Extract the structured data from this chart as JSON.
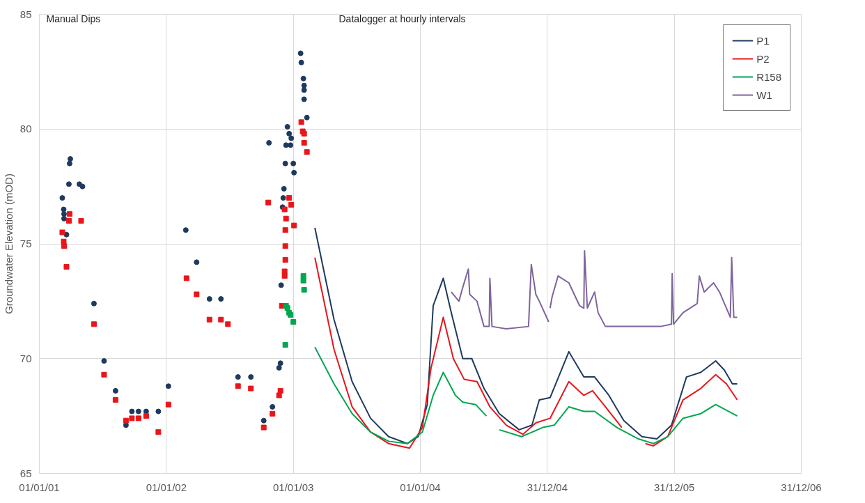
{
  "chart_data": {
    "type": "line",
    "ylabel": "Groundwater Elevation (mOD)",
    "annotations": [
      "Manual Dips",
      "Datalogger at hourly intervals"
    ],
    "xlim": [
      "2001-01-01",
      "2006-12-31"
    ],
    "xticks": [
      {
        "value": "2001-01-01",
        "label": "01/01/01"
      },
      {
        "value": "2002-01-01",
        "label": "01/01/02"
      },
      {
        "value": "2003-01-01",
        "label": "01/01/03"
      },
      {
        "value": "2004-01-01",
        "label": "01/01/04"
      },
      {
        "value": "2004-12-31",
        "label": "31/12/04"
      },
      {
        "value": "2005-12-31",
        "label": "31/12/05"
      },
      {
        "value": "2006-12-31",
        "label": "31/12/06"
      }
    ],
    "ylim": [
      65,
      85
    ],
    "yticks": [
      65,
      70,
      75,
      80,
      85
    ],
    "grid": true,
    "legend": "top right",
    "series": [
      {
        "name": "P1",
        "color": "#1f3a5f",
        "x": [
          "2003-03-04",
          "2003-04-28",
          "2003-06-19",
          "2003-08-11",
          "2003-10-02",
          "2003-11-25",
          "2003-12-26",
          "2004-01-21",
          "2004-02-07",
          "2004-03-07",
          "2004-03-30",
          "2004-05-02",
          "2004-05-28",
          "2004-07-02",
          "2004-08-15",
          "2004-10-11",
          "2004-11-17",
          "2004-12-08",
          "2005-01-08",
          "2005-03-03",
          "2005-04-15",
          "2005-05-16",
          "2005-06-26",
          "2005-08-08",
          "2005-09-29",
          "2005-11-11",
          "2005-12-23",
          "2006-02-04",
          "2006-03-17",
          "2006-04-29",
          "2006-05-24",
          "2006-06-16",
          "2006-06-30"
        ],
        "values": [
          75.7,
          71.7,
          69.0,
          67.4,
          66.6,
          66.3,
          66.6,
          68.0,
          72.3,
          73.5,
          72.0,
          70.0,
          70.0,
          68.7,
          67.6,
          66.9,
          67.1,
          68.2,
          68.3,
          70.3,
          69.2,
          69.2,
          68.4,
          67.3,
          66.6,
          66.5,
          67.1,
          69.2,
          69.4,
          69.9,
          69.5,
          68.9,
          68.9
        ]
      },
      {
        "name": "P2",
        "color": "#e8161b",
        "x": [
          "2003-03-04",
          "2003-04-28",
          "2003-06-19",
          "2003-08-11",
          "2003-10-02",
          "2003-12-01",
          "2004-01-07",
          "2004-02-01",
          "2004-03-07",
          "2004-04-05",
          "2004-05-06",
          "2004-06-12",
          "2004-07-19",
          "2004-09-04",
          "2004-10-22",
          "2004-11-28",
          "2005-01-08",
          "2005-03-03",
          "2005-04-15",
          "2005-05-10",
          "2005-06-16",
          "2005-08-02",
          "2005-08-20",
          "2005-10-09",
          "2005-11-01",
          "2005-12-12",
          "2006-01-25",
          "2006-03-17",
          "2006-04-29",
          "2006-05-30",
          "2006-06-30"
        ],
        "values": [
          74.4,
          70.4,
          67.9,
          66.8,
          66.3,
          66.1,
          67.0,
          69.6,
          71.8,
          70.0,
          69.1,
          69.0,
          67.9,
          67.1,
          66.7,
          67.2,
          67.4,
          69.0,
          68.4,
          68.6,
          67.9,
          67.0,
          null,
          66.3,
          66.2,
          66.6,
          68.2,
          68.7,
          69.3,
          68.9,
          68.2
        ]
      },
      {
        "name": "R158",
        "color": "#00a651",
        "x": [
          "2003-03-04",
          "2003-04-28",
          "2003-06-19",
          "2003-08-11",
          "2003-10-02",
          "2003-11-25",
          "2004-01-07",
          "2004-02-07",
          "2004-03-07",
          "2004-04-11",
          "2004-05-02",
          "2004-06-08",
          "2004-07-09",
          "2004-07-30",
          "2004-08-15",
          "2004-10-18",
          "2004-12-18",
          "2005-01-20",
          "2005-03-03",
          "2005-04-15",
          "2005-05-16",
          "2005-07-19",
          "2005-09-19",
          "2005-11-01",
          "2005-12-12",
          "2006-01-25",
          "2006-03-17",
          "2006-04-29",
          "2006-06-30"
        ],
        "values": [
          70.5,
          68.9,
          67.6,
          66.8,
          66.4,
          66.3,
          66.8,
          68.4,
          69.4,
          68.4,
          68.1,
          68.0,
          67.5,
          null,
          66.9,
          66.6,
          67.0,
          67.1,
          67.9,
          67.7,
          67.7,
          67.0,
          66.5,
          66.3,
          66.6,
          67.4,
          67.6,
          68.0,
          67.5
        ]
      },
      {
        "name": "W1",
        "color": "#7e649e",
        "x": [
          "2004-03-30",
          "2004-04-21",
          "2004-05-02",
          "2004-05-18",
          "2004-05-22",
          "2004-06-12",
          "2004-07-02",
          "2004-07-17",
          "2004-07-19",
          "2004-07-25",
          "2004-09-04",
          "2004-11-07",
          "2004-11-15",
          "2004-11-28",
          "2004-12-08",
          "2005-01-04",
          "2005-01-06",
          "2005-01-08",
          "2005-01-14",
          "2005-01-31",
          "2005-03-03",
          "2005-04-03",
          "2005-04-15",
          "2005-04-17",
          "2005-04-25",
          "2005-05-16",
          "2005-05-26",
          "2005-06-16",
          "2005-08-19",
          "2005-11-22",
          "2005-12-23",
          "2005-12-25",
          "2005-12-29",
          "2006-01-25",
          "2006-03-07",
          "2006-03-13",
          "2006-03-27",
          "2006-04-23",
          "2006-05-10",
          "2006-06-10",
          "2006-06-14",
          "2006-06-20",
          "2006-06-30"
        ],
        "values": [
          72.9,
          72.5,
          73.1,
          73.9,
          72.8,
          72.5,
          71.4,
          71.4,
          73.5,
          71.4,
          71.3,
          71.4,
          74.1,
          72.8,
          72.5,
          71.6,
          null,
          72.2,
          72.7,
          73.6,
          73.3,
          72.3,
          72.2,
          74.7,
          72.2,
          72.9,
          72.0,
          71.4,
          71.4,
          71.4,
          71.5,
          73.7,
          71.5,
          72.0,
          72.4,
          73.6,
          72.9,
          73.3,
          72.9,
          71.8,
          74.4,
          71.8,
          71.8
        ]
      },
      {
        "type": "scatter",
        "marker": "circle",
        "color": "#1f3a5f",
        "x": [
          "2001-03-08",
          "2001-03-12",
          "2001-03-13",
          "2001-03-13",
          "2001-03-20",
          "2001-03-27",
          "2001-03-29",
          "2001-03-31",
          "2001-04-26",
          "2001-05-05",
          "2001-06-07",
          "2001-07-06",
          "2001-08-08",
          "2001-09-07",
          "2001-09-24",
          "2001-10-13",
          "2001-11-04",
          "2001-12-09",
          "2002-01-07",
          "2002-02-26",
          "2002-03-29",
          "2002-05-05",
          "2002-06-07",
          "2002-07-26",
          "2002-09-01",
          "2002-10-08",
          "2002-10-23",
          "2002-11-02",
          "2002-11-21",
          "2002-11-25",
          "2002-11-27",
          "2002-12-01",
          "2002-12-03",
          "2002-12-05",
          "2002-12-09",
          "2002-12-11",
          "2002-12-15",
          "2002-12-20",
          "2002-12-24",
          "2002-12-26",
          "2003-01-01",
          "2003-01-03",
          "2003-01-22",
          "2003-01-24",
          "2003-01-30",
          "2003-02-01",
          "2003-02-01",
          "2003-02-01",
          "2003-02-09"
        ],
        "values": [
          77.0,
          76.5,
          76.3,
          76.1,
          75.4,
          77.6,
          78.5,
          78.7,
          77.6,
          77.5,
          72.4,
          69.9,
          68.6,
          67.1,
          67.7,
          67.7,
          67.7,
          67.7,
          68.8,
          75.6,
          74.2,
          72.6,
          72.6,
          69.2,
          69.2,
          67.3,
          79.4,
          67.9,
          69.6,
          69.8,
          73.2,
          76.6,
          77.0,
          77.4,
          78.5,
          79.3,
          80.1,
          79.8,
          79.3,
          79.6,
          78.5,
          78.1,
          83.3,
          82.9,
          82.2,
          81.9,
          81.7,
          81.3,
          80.5
        ]
      },
      {
        "type": "scatter",
        "marker": "square",
        "color": "#e8161b",
        "x": [
          "2001-03-08",
          "2001-03-12",
          "2001-03-13",
          "2001-03-20",
          "2001-03-27",
          "2001-03-29",
          "2001-05-01",
          "2001-06-07",
          "2001-07-06",
          "2001-08-08",
          "2001-09-07",
          "2001-09-24",
          "2001-10-13",
          "2001-11-04",
          "2001-12-09",
          "2002-01-07",
          "2002-02-28",
          "2002-03-29",
          "2002-05-05",
          "2002-06-07",
          "2002-06-27",
          "2002-07-26",
          "2002-09-01",
          "2002-10-08",
          "2002-10-21",
          "2002-11-02",
          "2002-11-21",
          "2002-11-25",
          "2002-11-29",
          "2002-12-07",
          "2002-12-07",
          "2002-12-07",
          "2002-12-09",
          "2002-12-09",
          "2002-12-09",
          "2002-12-11",
          "2002-12-20",
          "2002-12-26",
          "2003-01-03",
          "2003-01-24",
          "2003-01-28",
          "2003-02-01",
          "2003-02-01",
          "2003-02-09"
        ],
        "values": [
          75.5,
          75.1,
          74.9,
          74.0,
          76.0,
          76.3,
          76.0,
          71.5,
          69.3,
          68.2,
          67.3,
          67.4,
          67.4,
          67.5,
          66.8,
          68.0,
          73.5,
          72.8,
          71.7,
          71.7,
          71.5,
          68.8,
          68.7,
          67.0,
          76.8,
          67.6,
          68.4,
          68.6,
          72.3,
          73.6,
          73.8,
          76.5,
          74.3,
          74.9,
          75.6,
          76.1,
          77.0,
          76.7,
          75.8,
          80.3,
          79.9,
          79.8,
          79.4,
          79.0
        ]
      },
      {
        "type": "scatter",
        "marker": "square",
        "color": "#00a651",
        "x": [
          "2002-12-09",
          "2002-12-11",
          "2002-12-15",
          "2002-12-20",
          "2002-12-24",
          "2003-01-01",
          "2003-01-30",
          "2003-01-30",
          "2003-02-01"
        ],
        "values": [
          70.6,
          72.3,
          72.2,
          72.0,
          71.9,
          71.6,
          73.6,
          73.4,
          73.0
        ]
      }
    ]
  }
}
